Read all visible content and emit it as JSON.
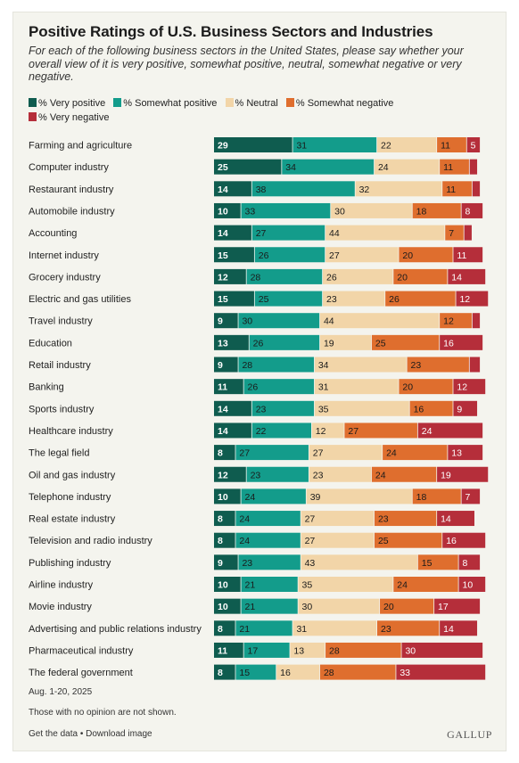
{
  "header": {
    "title": "Positive Ratings of U.S. Business Sectors and Industries",
    "subtitle": "For each of the following business sectors in the United States, please say whether your overall view of it is very positive, somewhat positive, neutral, somewhat negative or very negative."
  },
  "legend": [
    {
      "label": "% Very positive",
      "color": "#0f5c4f"
    },
    {
      "label": "% Somewhat positive",
      "color": "#139c8b"
    },
    {
      "label": "% Neutral",
      "color": "#f2d5a8"
    },
    {
      "label": "% Somewhat negative",
      "color": "#df6e2e"
    },
    {
      "label": "% Very negative",
      "color": "#b52e3a"
    }
  ],
  "chart_data": {
    "type": "bar",
    "orientation": "horizontal",
    "stacked": true,
    "categories": [
      "Farming and agriculture",
      "Computer industry",
      "Restaurant industry",
      "Automobile industry",
      "Accounting",
      "Internet industry",
      "Grocery industry",
      "Electric and gas utilities",
      "Travel industry",
      "Education",
      "Retail industry",
      "Banking",
      "Sports industry",
      "Healthcare industry",
      "The legal field",
      "Oil and gas industry",
      "Telephone industry",
      "Real estate industry",
      "Television and radio industry",
      "Publishing industry",
      "Airline industry",
      "Movie industry",
      "Advertising and public relations industry",
      "Pharmaceutical industry",
      "The federal government"
    ],
    "series": [
      {
        "name": "% Very positive",
        "color": "#0f5c4f",
        "label_color": "#ffffff",
        "values": [
          29,
          25,
          14,
          10,
          14,
          15,
          12,
          15,
          9,
          13,
          9,
          11,
          14,
          14,
          8,
          12,
          10,
          8,
          8,
          9,
          10,
          10,
          8,
          11,
          8
        ]
      },
      {
        "name": "% Somewhat positive",
        "color": "#139c8b",
        "label_color": "#1a1a1a",
        "values": [
          31,
          34,
          38,
          33,
          27,
          26,
          28,
          25,
          30,
          26,
          28,
          26,
          23,
          22,
          27,
          23,
          24,
          24,
          24,
          23,
          21,
          21,
          21,
          17,
          15
        ]
      },
      {
        "name": "% Neutral",
        "color": "#f2d5a8",
        "label_color": "#1a1a1a",
        "values": [
          22,
          24,
          32,
          30,
          44,
          27,
          26,
          23,
          44,
          19,
          34,
          31,
          35,
          12,
          27,
          23,
          39,
          27,
          27,
          43,
          35,
          30,
          31,
          13,
          16
        ]
      },
      {
        "name": "% Somewhat negative",
        "color": "#df6e2e",
        "label_color": "#1a1a1a",
        "values": [
          11,
          11,
          11,
          18,
          7,
          20,
          20,
          26,
          12,
          25,
          23,
          20,
          16,
          27,
          24,
          24,
          18,
          23,
          25,
          15,
          24,
          20,
          23,
          28,
          28
        ]
      },
      {
        "name": "% Very negative",
        "color": "#b52e3a",
        "label_color": "#ffffff",
        "values": [
          5,
          3,
          3,
          8,
          3,
          11,
          14,
          12,
          3,
          16,
          4,
          12,
          9,
          24,
          13,
          19,
          7,
          14,
          16,
          8,
          10,
          17,
          14,
          30,
          33
        ]
      }
    ],
    "hidden_labels": [
      [
        1,
        4
      ],
      [
        2,
        4
      ],
      [
        4,
        4
      ],
      [
        8,
        4
      ],
      [
        10,
        4
      ]
    ],
    "xlim": [
      0,
      100
    ]
  },
  "footer": {
    "date": "Aug. 1-20, 2025",
    "note": "Those with no opinion are not shown.",
    "get_data": "Get the data",
    "separator": "•",
    "download": "Download image",
    "brand": "GALLUP"
  }
}
